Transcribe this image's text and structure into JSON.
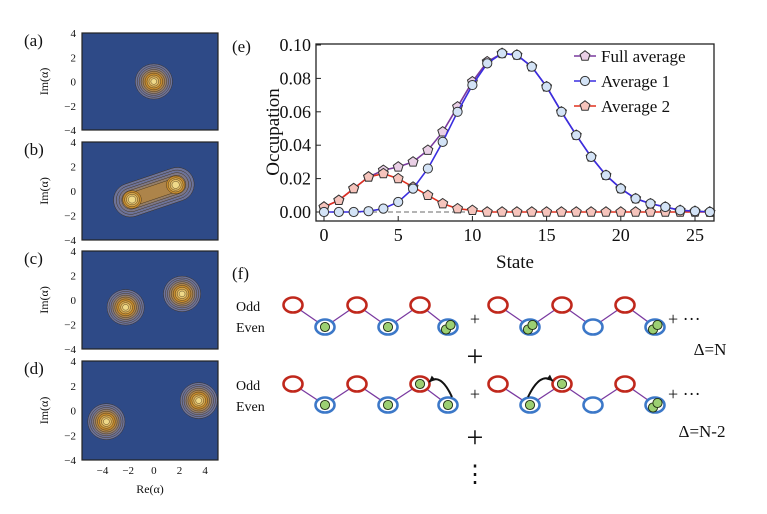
{
  "panels_left": {
    "x_label": "Re(α)",
    "y_label": "Im(α)",
    "x_ticks": [
      "−4",
      "−2",
      "0",
      "2",
      "4"
    ],
    "x_tick_values": [
      -4,
      -2,
      0,
      2,
      4
    ],
    "y_ticks": [
      "4",
      "2",
      "0",
      "−2",
      "−4"
    ],
    "y_tick_values": [
      4,
      2,
      0,
      -2,
      -4
    ],
    "x_range": [
      -5.6,
      5.0
    ],
    "y_range": [
      -4,
      4
    ],
    "colors": {
      "background": "#2e4a87",
      "outer": "#6d7399",
      "mid": "#c48a2e",
      "inner": "#f0dc8c",
      "peak": "#fffbe6"
    },
    "items": [
      {
        "label": "(a)",
        "peaks": [
          [
            0,
            0
          ]
        ]
      },
      {
        "label": "(b)",
        "peaks": [
          [
            -1.7,
            -0.7
          ],
          [
            1.7,
            0.5
          ]
        ],
        "joined": true
      },
      {
        "label": "(c)",
        "peaks": [
          [
            -2.2,
            -0.6
          ],
          [
            2.2,
            0.5
          ]
        ]
      },
      {
        "label": "(d)",
        "peaks": [
          [
            -3.7,
            -0.9
          ],
          [
            3.5,
            0.8
          ]
        ]
      }
    ]
  },
  "chart_data": {
    "type": "line",
    "panel_label": "(e)",
    "xlabel": "State",
    "ylabel": "Occupation",
    "xlim": [
      -0.6,
      26.5
    ],
    "ylim": [
      -0.004,
      0.1005
    ],
    "x_ticks": [
      0,
      5,
      10,
      15,
      20,
      25
    ],
    "y_ticks": [
      "0.00",
      "0.02",
      "0.04",
      "0.06",
      "0.08",
      "0.10"
    ],
    "y_tick_values": [
      0,
      0.02,
      0.04,
      0.06,
      0.08,
      0.1
    ],
    "grid": false,
    "legend": "top-right",
    "x": [
      0,
      1,
      2,
      3,
      4,
      5,
      6,
      7,
      8,
      9,
      10,
      11,
      12,
      13,
      14,
      15,
      16,
      17,
      18,
      19,
      20,
      21,
      22,
      23,
      24,
      25,
      26
    ],
    "series": [
      {
        "name": "Full average",
        "line_color": "#7a3a9e",
        "marker_color": "#ead0e6",
        "marker": "pentagon",
        "values": [
          0.003,
          0.007,
          0.014,
          0.021,
          0.025,
          0.027,
          0.03,
          0.037,
          0.048,
          0.063,
          0.078,
          0.09,
          0.095,
          0.094,
          0.087,
          0.075,
          0.06,
          0.046,
          0.033,
          0.022,
          0.014,
          0.008,
          0.005,
          0.003,
          0.001,
          0.0005,
          0.0
        ]
      },
      {
        "name": "Average 2",
        "line_color": "#e0301e",
        "marker_color": "#f6c4bc",
        "marker": "pentagon",
        "values": [
          0.003,
          0.007,
          0.014,
          0.021,
          0.023,
          0.02,
          0.015,
          0.01,
          0.005,
          0.002,
          0.001,
          0.0,
          0.0,
          0.0,
          0.0,
          0.0,
          0.0,
          0.0,
          0.0,
          0.0,
          0.0,
          0.0,
          0.0,
          0.0,
          0.0,
          0.0,
          0.0
        ]
      },
      {
        "name": "Average 1",
        "line_color": "#3a2ee0",
        "marker_color": "#d3e3f6",
        "marker": "circle",
        "values": [
          0.0,
          0.0,
          0.0,
          0.0005,
          0.002,
          0.006,
          0.014,
          0.026,
          0.042,
          0.06,
          0.076,
          0.089,
          0.095,
          0.094,
          0.087,
          0.075,
          0.06,
          0.046,
          0.033,
          0.022,
          0.014,
          0.008,
          0.005,
          0.003,
          0.001,
          0.0005,
          0.0
        ]
      }
    ],
    "legend_order": [
      "Full average",
      "Average 1",
      "Average 2"
    ],
    "reference_line": {
      "y": 0,
      "x_range": [
        0,
        10
      ],
      "style": "dashed",
      "color": "#888888"
    }
  },
  "diagram": {
    "panel_label": "(f)",
    "odd_label": "Odd",
    "even_label": "Even",
    "plus": "+",
    "plus_more": "+ ···",
    "vdots": "⋮",
    "delta_row1": "Δ=N",
    "delta_row2": "Δ=N-2",
    "colors": {
      "odd": "#c0281c",
      "even": "#3c78c8",
      "bond": "#7a3aa0",
      "particle": "#9ccf72"
    },
    "rows": [
      {
        "configs": [
          {
            "even": [
              1,
              1,
              2
            ],
            "odd": [
              0,
              0,
              0
            ]
          },
          {
            "even": [
              2,
              0,
              2
            ],
            "odd": [
              0,
              0,
              0
            ]
          }
        ]
      },
      {
        "configs": [
          {
            "even": [
              1,
              1,
              1
            ],
            "odd": [
              0,
              0,
              1
            ],
            "hop": "even3-to-odd3"
          },
          {
            "even": [
              1,
              0,
              2
            ],
            "odd": [
              0,
              1,
              0
            ],
            "hop": "even1-to-odd2"
          }
        ]
      }
    ]
  }
}
